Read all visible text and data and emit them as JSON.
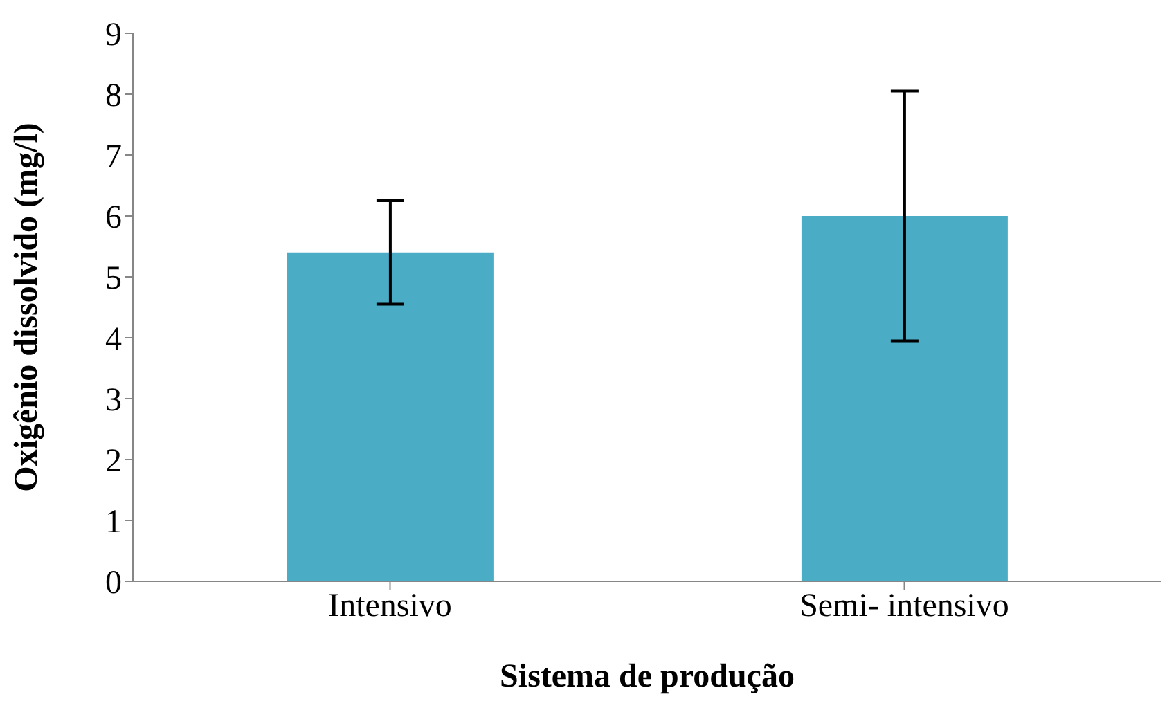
{
  "chart_data": {
    "type": "bar",
    "xlabel": "Sistema de produção",
    "ylabel": "Oxigênio dissolvido (mg/l)",
    "categories": [
      "Intensivo",
      "Semi- intensivo"
    ],
    "values": [
      5.4,
      6.0
    ],
    "color": "#4bacc6",
    "errors": [
      0.85,
      2.05
    ],
    "ylim": [
      0,
      9
    ],
    "yticks": [
      0,
      1,
      2,
      3,
      4,
      5,
      6,
      7,
      8,
      9
    ],
    "grid": false,
    "legend": false
  }
}
